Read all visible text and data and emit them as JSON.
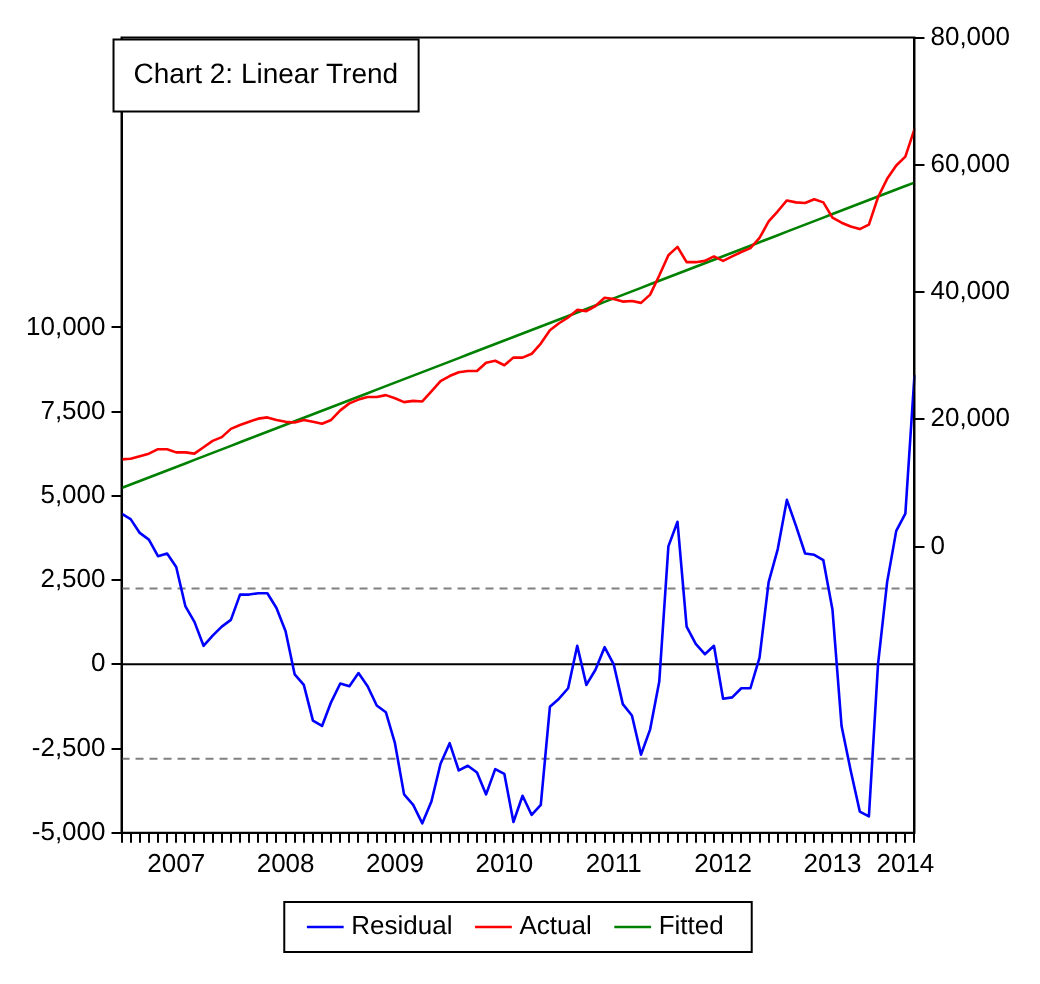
{
  "chart_data": {
    "type": "line",
    "title": "Chart 2: Linear Trend",
    "categories": [
      null,
      null,
      null,
      null,
      null,
      null,
      "2007",
      null,
      null,
      null,
      null,
      null,
      null,
      null,
      null,
      null,
      null,
      null,
      "2008",
      null,
      null,
      null,
      null,
      null,
      null,
      null,
      null,
      null,
      null,
      null,
      "2009",
      null,
      null,
      null,
      null,
      null,
      null,
      null,
      null,
      null,
      null,
      null,
      "2010",
      null,
      null,
      null,
      null,
      null,
      null,
      null,
      null,
      null,
      null,
      null,
      "2011",
      null,
      null,
      null,
      null,
      null,
      null,
      null,
      null,
      null,
      null,
      null,
      "2012",
      null,
      null,
      null,
      null,
      null,
      null,
      null,
      null,
      null,
      null,
      null,
      "2013",
      null,
      null,
      null,
      null,
      null,
      null,
      null,
      "2014",
      null
    ],
    "series": [
      {
        "name": "Residual",
        "color": "#0000ff",
        "axis": "y",
        "values": [
          4470,
          4310,
          3900,
          3700,
          3210,
          3290,
          2890,
          1730,
          1260,
          550,
          850,
          1120,
          1320,
          2070,
          2070,
          2110,
          2110,
          1670,
          980,
          -300,
          -610,
          -1670,
          -1830,
          -1120,
          -570,
          -650,
          -260,
          -650,
          -1220,
          -1420,
          -2340,
          -3860,
          -4170,
          -4720,
          -4070,
          -2950,
          -2340,
          -3150,
          -3010,
          -3210,
          -3860,
          -3110,
          -3250,
          -4680,
          -3900,
          -4470,
          -4170,
          -1260,
          -1020,
          -710,
          550,
          -610,
          -160,
          510,
          0,
          -1180,
          -1520,
          -2680,
          -1930,
          -510,
          3500,
          4230,
          1120,
          610,
          300,
          550,
          -1020,
          -980,
          -710,
          -710,
          200,
          2440,
          3420,
          4880,
          4110,
          3290,
          3250,
          3090,
          1630,
          -1830,
          -3150,
          -4370,
          -4510,
          0,
          2440,
          3960,
          4470,
          8580
        ]
      },
      {
        "name": "Actual",
        "color": "#ff0000",
        "axis": "y2",
        "values": [
          13700,
          13800,
          14200,
          14600,
          15300,
          15300,
          14800,
          14800,
          14600,
          15600,
          16600,
          17200,
          18500,
          19100,
          19600,
          20100,
          20300,
          19900,
          19600,
          19500,
          19900,
          19600,
          19300,
          19900,
          21400,
          22500,
          23100,
          23500,
          23500,
          23800,
          23300,
          22700,
          22900,
          22800,
          24400,
          26000,
          26800,
          27400,
          27600,
          27600,
          28900,
          29200,
          28500,
          29700,
          29700,
          30300,
          31900,
          34000,
          35100,
          36000,
          37200,
          37000,
          37800,
          39100,
          38900,
          38500,
          38600,
          38300,
          39600,
          42600,
          45800,
          47100,
          44700,
          44700,
          44900,
          45600,
          44900,
          45600,
          46300,
          46900,
          48500,
          51100,
          52700,
          54400,
          54100,
          54000,
          54600,
          54100,
          51700,
          50900,
          50300,
          49900,
          50600,
          54900,
          57800,
          59900,
          61300,
          65600
        ]
      },
      {
        "name": "Fitted",
        "color": "#008000",
        "axis": "y2",
        "values": [
          9200,
          9750,
          10300,
          10860,
          11410,
          11960,
          12510,
          13060,
          13620,
          14170,
          14720,
          15270,
          15820,
          16380,
          16930,
          17480,
          18030,
          18580,
          19140,
          19690,
          20240,
          20790,
          21340,
          21900,
          22450,
          23000,
          23550,
          24100,
          24660,
          25210,
          25760,
          26310,
          26860,
          27420,
          27970,
          28520,
          29070,
          29620,
          30180,
          30730,
          31280,
          31830,
          32380,
          32940,
          33490,
          34040,
          34590,
          35140,
          35700,
          36250,
          36800,
          37350,
          37900,
          38460,
          39010,
          39560,
          40110,
          40660,
          41220,
          41770,
          42320,
          42870,
          43420,
          43980,
          44530,
          45080,
          45630,
          46180,
          46740,
          47290,
          47840,
          48390,
          48940,
          49500,
          50050,
          50600,
          51150,
          51700,
          52260,
          52810,
          53360,
          53910,
          54460,
          55020,
          55570,
          56120,
          56670,
          57200
        ]
      }
    ],
    "ylim": [
      -5000,
      18600
    ],
    "yticks": [
      {
        "value": -5000,
        "label": "-5,000"
      },
      {
        "value": -2500,
        "label": "-2,500"
      },
      0,
      {
        "value": 2500,
        "label": "2,500"
      },
      {
        "value": 5000,
        "label": "5,000"
      },
      {
        "value": 7500,
        "label": "7,500"
      },
      {
        "value": 10000,
        "label": "10,000"
      }
    ],
    "y2lim": [
      -45000,
      80000
    ],
    "y2ticks": [
      0,
      {
        "value": 20000,
        "label": "20,000"
      },
      {
        "value": 40000,
        "label": "40,000"
      },
      {
        "value": 60000,
        "label": "60,000"
      },
      {
        "value": 80000,
        "label": "80,000"
      }
    ],
    "ref_lines": [
      {
        "axis": "y",
        "value": 0,
        "color": "#000000",
        "line_style": "solid"
      },
      {
        "axis": "y",
        "value": 2250,
        "color": "#808080",
        "line_style": "dashed"
      },
      {
        "axis": "y",
        "value": -2800,
        "color": "#808080",
        "line_style": "dashed"
      }
    ],
    "grid": false,
    "legend": "bottom",
    "marker": "none",
    "line_style": "solid"
  }
}
